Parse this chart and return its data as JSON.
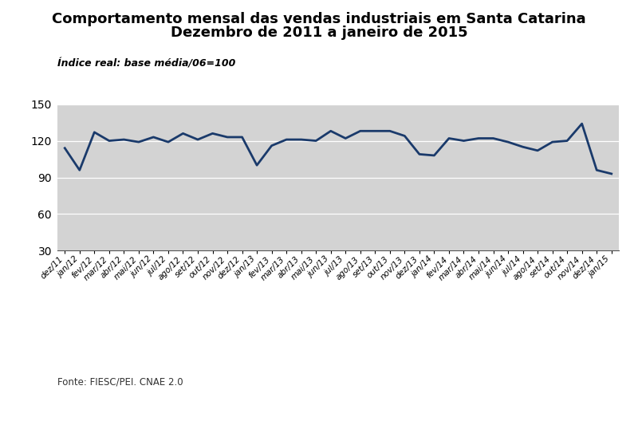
{
  "title_line1": "Comportamento mensal das vendas industriais em Santa Catarina",
  "title_line2": "Dezembro de 2011 a janeiro de 2015",
  "subtitle": "Índice real: base média/06=100",
  "source": "Fonte: FIESC/PEI. CNAE 2.0",
  "line_color": "#1a3a6b",
  "line_width": 2.0,
  "bg_color": "#d3d3d3",
  "outer_bg": "#ffffff",
  "ylim": [
    30,
    150
  ],
  "yticks": [
    30,
    60,
    90,
    120,
    150
  ],
  "labels": [
    "dez/11",
    "jan/12",
    "fev/12",
    "mar/12",
    "abr/12",
    "mai/12",
    "jun/12",
    "jul/12",
    "ago/12",
    "set/12",
    "out/12",
    "nov/12",
    "dez/12",
    "jan/13",
    "fev/13",
    "mar/13",
    "abr/13",
    "mai/13",
    "jun/13",
    "jul/13",
    "ago/13",
    "set/13",
    "out/13",
    "nov/13",
    "dez/13",
    "jan/14",
    "fev/14",
    "mar/14",
    "abr/14",
    "mai/14",
    "jun/14",
    "jul/14",
    "ago/14",
    "set/14",
    "out/14",
    "nov/14",
    "dez/14",
    "jan/15"
  ],
  "values": [
    114,
    96,
    127,
    120,
    121,
    119,
    123,
    119,
    126,
    121,
    126,
    123,
    123,
    100,
    116,
    121,
    121,
    120,
    128,
    122,
    128,
    128,
    128,
    124,
    109,
    108,
    122,
    120,
    122,
    122,
    119,
    115,
    112,
    119,
    120,
    134,
    96,
    93
  ]
}
